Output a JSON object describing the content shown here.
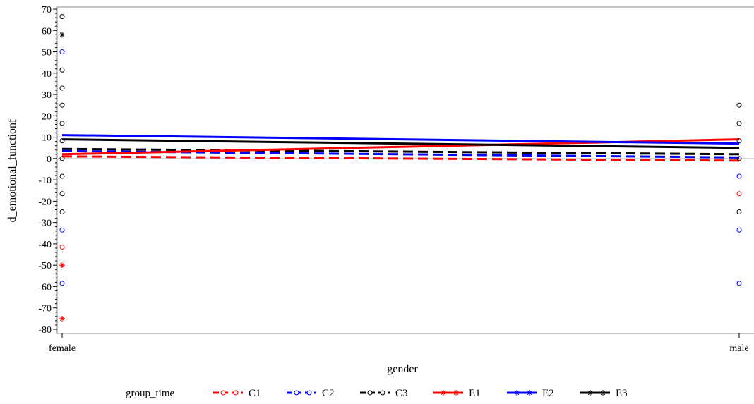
{
  "chart_data": {
    "type": "line",
    "xlabel": "gender",
    "ylabel": "d_emotional_functionf",
    "categories": [
      "female",
      "male"
    ],
    "ylim": [
      -82,
      71
    ],
    "yticks": [
      70,
      60,
      50,
      40,
      30,
      20,
      10,
      0,
      -10,
      -20,
      -30,
      -40,
      -50,
      -60,
      -70,
      -80
    ],
    "legend": {
      "title": "group_time",
      "position": "bottom"
    },
    "series": [
      {
        "name": "C1",
        "color": "#ff0000",
        "dash": "dashed",
        "marker": "circle",
        "values": [
          1,
          -1
        ]
      },
      {
        "name": "C2",
        "color": "#0000ff",
        "dash": "dashed",
        "marker": "circle",
        "values": [
          3.5,
          0.5
        ]
      },
      {
        "name": "C3",
        "color": "#000000",
        "dash": "dashed",
        "marker": "circle",
        "values": [
          4.5,
          2
        ]
      },
      {
        "name": "E1",
        "color": "#ff0000",
        "dash": "solid",
        "marker": "star",
        "values": [
          2,
          9
        ]
      },
      {
        "name": "E2",
        "color": "#0000ff",
        "dash": "solid",
        "marker": "star",
        "values": [
          11,
          7
        ]
      },
      {
        "name": "E3",
        "color": "#000000",
        "dash": "solid",
        "marker": "star",
        "values": [
          9,
          5
        ]
      }
    ],
    "points": [
      {
        "x": "female",
        "y": 66.5,
        "marker": "circle",
        "color": "#000000"
      },
      {
        "x": "female",
        "y": 58,
        "marker": "star",
        "color": "#000000"
      },
      {
        "x": "female",
        "y": 50,
        "marker": "circle",
        "color": "#0000ff"
      },
      {
        "x": "female",
        "y": 41.5,
        "marker": "circle",
        "color": "#000000"
      },
      {
        "x": "female",
        "y": 33,
        "marker": "circle",
        "color": "#000000"
      },
      {
        "x": "female",
        "y": 25,
        "marker": "circle",
        "color": "#000000"
      },
      {
        "x": "female",
        "y": 16.5,
        "marker": "circle",
        "color": "#000000"
      },
      {
        "x": "female",
        "y": 8.3,
        "marker": "circle",
        "color": "#000000"
      },
      {
        "x": "female",
        "y": 0,
        "marker": "circle",
        "color": "#000000"
      },
      {
        "x": "female",
        "y": -8.3,
        "marker": "circle",
        "color": "#000000"
      },
      {
        "x": "female",
        "y": -16.5,
        "marker": "circle",
        "color": "#000000"
      },
      {
        "x": "female",
        "y": -25,
        "marker": "circle",
        "color": "#000000"
      },
      {
        "x": "female",
        "y": -33.5,
        "marker": "circle",
        "color": "#0000ff"
      },
      {
        "x": "female",
        "y": -41.5,
        "marker": "circle",
        "color": "#ff0000"
      },
      {
        "x": "female",
        "y": -50,
        "marker": "star",
        "color": "#ff0000"
      },
      {
        "x": "female",
        "y": -58.5,
        "marker": "circle",
        "color": "#0000ff"
      },
      {
        "x": "female",
        "y": -75,
        "marker": "star",
        "color": "#ff0000"
      },
      {
        "x": "male",
        "y": 25,
        "marker": "circle",
        "color": "#000000"
      },
      {
        "x": "male",
        "y": 16.5,
        "marker": "circle",
        "color": "#000000"
      },
      {
        "x": "male",
        "y": 8.3,
        "marker": "circle",
        "color": "#000000"
      },
      {
        "x": "male",
        "y": 0,
        "marker": "circle",
        "color": "#000000"
      },
      {
        "x": "male",
        "y": -8.3,
        "marker": "circle",
        "color": "#0000ff"
      },
      {
        "x": "male",
        "y": -16.5,
        "marker": "circle",
        "color": "#ff0000"
      },
      {
        "x": "male",
        "y": -25,
        "marker": "circle",
        "color": "#000000"
      },
      {
        "x": "male",
        "y": -33.5,
        "marker": "circle",
        "color": "#0000ff"
      },
      {
        "x": "male",
        "y": -58.5,
        "marker": "circle",
        "color": "#0000ff"
      }
    ]
  }
}
